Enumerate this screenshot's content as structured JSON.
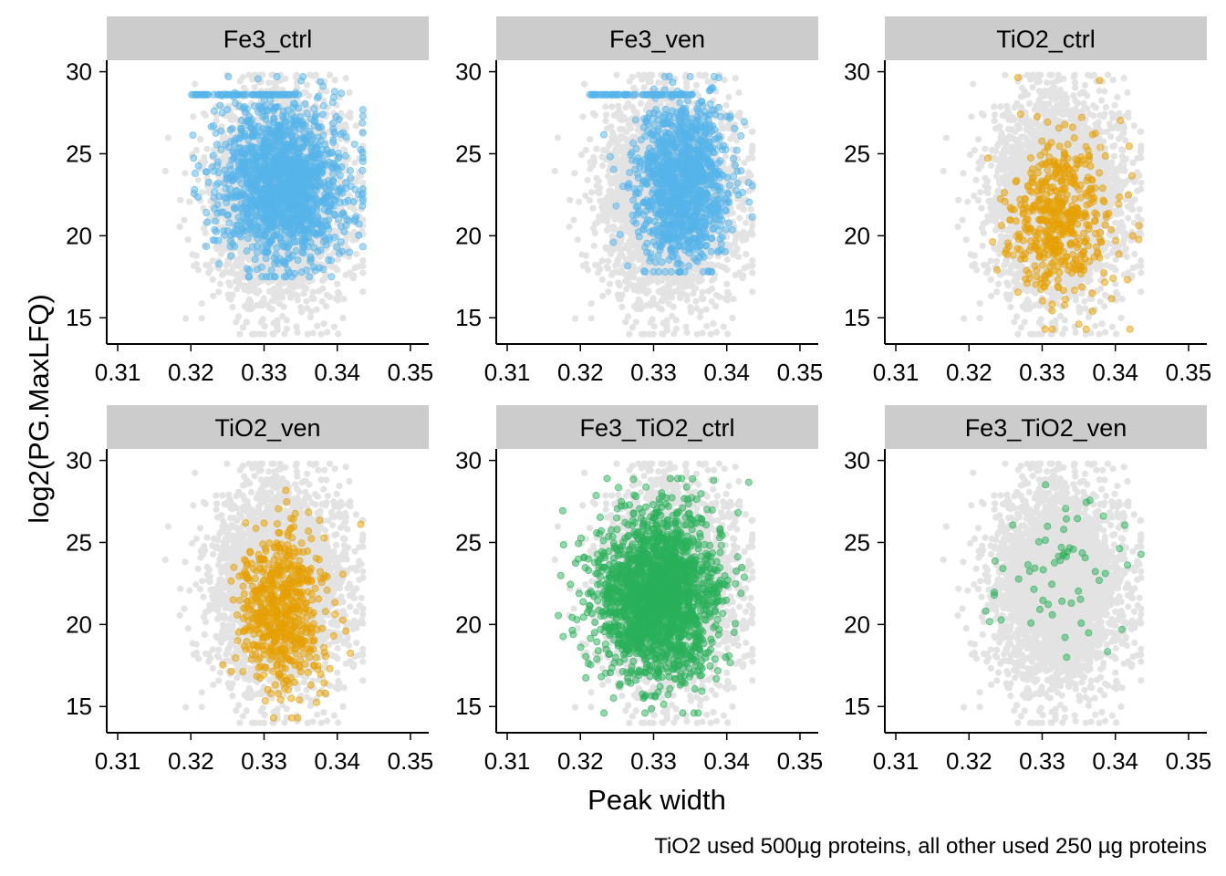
{
  "figure": {
    "ylabel": "log2(PG.MaxLFQ)",
    "xlabel": "Peak width",
    "caption": "TiO2 used 500µg proteins, all other used 250 µg proteins"
  },
  "chart_data": {
    "type": "scatter",
    "layout": "faceted 2x3",
    "xlim": [
      0.3085,
      0.3525
    ],
    "ylim": [
      13.4,
      30.7
    ],
    "x_ticks": [
      0.31,
      0.32,
      0.33,
      0.34,
      0.35
    ],
    "x_tick_labels": [
      "0.31",
      "0.32",
      "0.33",
      "0.34",
      "0.35"
    ],
    "y_ticks": [
      15,
      20,
      25,
      30
    ],
    "y_tick_labels": [
      "15",
      "20",
      "25",
      "30"
    ],
    "grid": false,
    "legend": "none",
    "background_points": {
      "color": "#e3e3e3",
      "description": "all samples combined, shown in grey in every panel",
      "x_mean": 0.332,
      "x_sd": 0.0045,
      "x_range": [
        0.311,
        0.3435
      ],
      "y_mean": 22.3,
      "y_sd": 3.0,
      "y_range": [
        14.0,
        29.8
      ],
      "n": 3200
    },
    "facets": [
      {
        "label": "Fe3_ctrl",
        "color": "#56b4e9",
        "x_mean": 0.3325,
        "x_sd": 0.0042,
        "x_range": [
          0.3195,
          0.3435
        ],
        "y_mean": 23.2,
        "y_sd": 2.4,
        "y_range": [
          17.5,
          29.7
        ],
        "n": 1500,
        "saturation_band_y": 28.6
      },
      {
        "label": "Fe3_ven",
        "color": "#56b4e9",
        "x_mean": 0.334,
        "x_sd": 0.0032,
        "x_range": [
          0.3205,
          0.3435
        ],
        "y_mean": 23.3,
        "y_sd": 2.4,
        "y_range": [
          17.8,
          29.7
        ],
        "n": 1200,
        "saturation_band_y": 28.6
      },
      {
        "label": "TiO2_ctrl",
        "color": "#e69f00",
        "x_mean": 0.3322,
        "x_sd": 0.0035,
        "x_range": [
          0.3185,
          0.3432
        ],
        "y_mean": 21.1,
        "y_sd": 2.6,
        "y_range": [
          14.3,
          29.9
        ],
        "n": 500
      },
      {
        "label": "TiO2_ven",
        "color": "#e69f00",
        "x_mean": 0.3325,
        "x_sd": 0.0028,
        "x_range": [
          0.3195,
          0.3432
        ],
        "y_mean": 21.0,
        "y_sd": 2.5,
        "y_range": [
          14.3,
          29.9
        ],
        "n": 600
      },
      {
        "label": "Fe3_TiO2_ctrl",
        "color": "#2ab05a",
        "x_mean": 0.3305,
        "x_sd": 0.0042,
        "x_range": [
          0.311,
          0.343
        ],
        "y_mean": 21.8,
        "y_sd": 2.5,
        "y_range": [
          14.6,
          28.9
        ],
        "n": 2000
      },
      {
        "label": "Fe3_TiO2_ven",
        "color": "#2ab05a",
        "x_mean": 0.333,
        "x_sd": 0.0045,
        "x_range": [
          0.32,
          0.3435
        ],
        "y_mean": 23.2,
        "y_sd": 2.5,
        "y_range": [
          18.0,
          28.9
        ],
        "n": 60
      }
    ]
  }
}
